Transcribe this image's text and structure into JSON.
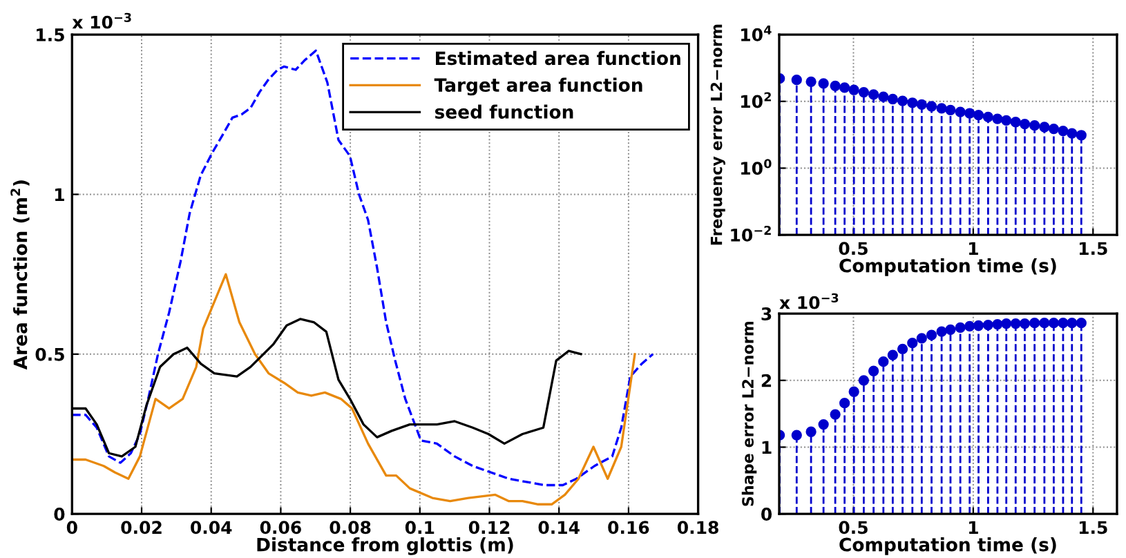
{
  "chart_data": [
    {
      "type": "line",
      "xlabel": "Distance from glottis (m)",
      "ylabel": "Area function (m$^{2}$)",
      "annotations": [
        "x 10$^{−3}$"
      ],
      "xlim": [
        0,
        0.18
      ],
      "ylim": [
        0,
        1.5
      ],
      "xticks": [
        0,
        0.02,
        0.04,
        0.06,
        0.08,
        0.1,
        0.12,
        0.14,
        0.16,
        0.18
      ],
      "yticks": [
        0,
        0.5,
        1,
        1.5
      ],
      "grid": true,
      "legend": "top right",
      "series": [
        {
          "name": "Estimated area function",
          "color": "#0000ff",
          "line_style": "dashed",
          "x": [
            0,
            0.0039,
            0.0071,
            0.0106,
            0.0139,
            0.0169,
            0.0195,
            0.0221,
            0.0247,
            0.0279,
            0.0312,
            0.0338,
            0.037,
            0.0403,
            0.0435,
            0.0461,
            0.0487,
            0.0513,
            0.0539,
            0.0565,
            0.0591,
            0.061,
            0.0643,
            0.0669,
            0.0701,
            0.0734,
            0.0766,
            0.0799,
            0.0825,
            0.0851,
            0.0877,
            0.0903,
            0.0929,
            0.0958,
            0.1003,
            0.1049,
            0.11,
            0.1152,
            0.1204,
            0.1256,
            0.1307,
            0.1359,
            0.1411,
            0.145,
            0.1502,
            0.1553,
            0.1579,
            0.1605,
            0.1638,
            0.167
          ],
          "values": [
            0.31,
            0.31,
            0.27,
            0.18,
            0.16,
            0.19,
            0.25,
            0.37,
            0.5,
            0.63,
            0.79,
            0.94,
            1.06,
            1.13,
            1.19,
            1.24,
            1.25,
            1.27,
            1.32,
            1.36,
            1.39,
            1.4,
            1.39,
            1.42,
            1.45,
            1.35,
            1.17,
            1.12,
            1.0,
            0.92,
            0.77,
            0.6,
            0.48,
            0.36,
            0.23,
            0.22,
            0.18,
            0.15,
            0.13,
            0.11,
            0.1,
            0.09,
            0.09,
            0.11,
            0.15,
            0.18,
            0.27,
            0.43,
            0.47,
            0.5
          ]
        },
        {
          "name": "Target area function",
          "color": "#e8890c",
          "line_style": "solid",
          "x": [
            0,
            0.0039,
            0.0091,
            0.0123,
            0.0162,
            0.0195,
            0.024,
            0.0279,
            0.0318,
            0.0357,
            0.0377,
            0.0442,
            0.0481,
            0.0526,
            0.0565,
            0.061,
            0.0649,
            0.0688,
            0.0727,
            0.0773,
            0.0805,
            0.0851,
            0.0903,
            0.0932,
            0.0971,
            0.1036,
            0.1087,
            0.1139,
            0.1217,
            0.1256,
            0.1295,
            0.134,
            0.1379,
            0.1417,
            0.1456,
            0.1499,
            0.154,
            0.1579,
            0.1618
          ],
          "values": [
            0.17,
            0.17,
            0.15,
            0.13,
            0.11,
            0.18,
            0.36,
            0.33,
            0.36,
            0.46,
            0.58,
            0.75,
            0.6,
            0.5,
            0.44,
            0.41,
            0.38,
            0.37,
            0.38,
            0.36,
            0.33,
            0.22,
            0.12,
            0.12,
            0.08,
            0.05,
            0.04,
            0.05,
            0.06,
            0.04,
            0.04,
            0.03,
            0.03,
            0.06,
            0.11,
            0.21,
            0.11,
            0.21,
            0.5
          ]
        },
        {
          "name": "seed function",
          "color": "#000000",
          "line_style": "solid",
          "x": [
            0,
            0.0039,
            0.0071,
            0.0106,
            0.0143,
            0.0182,
            0.0214,
            0.0253,
            0.0292,
            0.0331,
            0.037,
            0.0409,
            0.0474,
            0.0513,
            0.0578,
            0.0617,
            0.0656,
            0.0695,
            0.0731,
            0.0766,
            0.0799,
            0.0838,
            0.0877,
            0.0919,
            0.0971,
            0.1049,
            0.11,
            0.1152,
            0.1197,
            0.1243,
            0.1295,
            0.1355,
            0.1392,
            0.1428,
            0.1463
          ],
          "values": [
            0.33,
            0.33,
            0.28,
            0.19,
            0.18,
            0.21,
            0.34,
            0.46,
            0.5,
            0.52,
            0.47,
            0.44,
            0.43,
            0.46,
            0.53,
            0.59,
            0.61,
            0.6,
            0.57,
            0.42,
            0.36,
            0.28,
            0.24,
            0.26,
            0.28,
            0.28,
            0.29,
            0.27,
            0.25,
            0.22,
            0.25,
            0.27,
            0.48,
            0.51,
            0.5
          ]
        }
      ]
    },
    {
      "type": "lollipop",
      "xlabel": "Computation time (s)",
      "ylabel": "Frequency error L2−norm",
      "log": "y",
      "xlim": [
        0.19,
        1.6
      ],
      "ylim": [
        0.01,
        10000
      ],
      "xticks": [
        0.5,
        1,
        1.5
      ],
      "yticks": [
        {
          "value": 0.01,
          "label": "10$^{−2}$"
        },
        {
          "value": 1,
          "label": "10$^{0}$"
        },
        {
          "value": 100,
          "label": "10$^{2}$"
        },
        {
          "value": 10000,
          "label": "10$^{4}$"
        }
      ],
      "grid": true,
      "marker": "circle",
      "line_style": "dashed",
      "series": [
        {
          "color": "#0000cc",
          "x": [
            0.192,
            0.263,
            0.323,
            0.375,
            0.424,
            0.463,
            0.502,
            0.543,
            0.584,
            0.625,
            0.664,
            0.705,
            0.746,
            0.785,
            0.826,
            0.868,
            0.905,
            0.946,
            0.985,
            1.022,
            1.062,
            1.101,
            1.138,
            1.177,
            1.215,
            1.256,
            1.297,
            1.336,
            1.375,
            1.412,
            1.451
          ],
          "values": [
            484,
            441,
            388,
            342,
            292,
            258,
            220,
            188,
            160,
            137,
            117,
            103,
            91,
            80,
            71,
            62,
            55,
            48,
            44,
            39,
            34,
            30,
            27,
            24,
            21,
            19,
            17,
            15,
            13,
            11,
            9.7
          ]
        }
      ]
    },
    {
      "type": "lollipop",
      "xlabel": "Computation time (s)",
      "ylabel": "Shape error L2−norm",
      "annotations": [
        "x 10$^{−3}$"
      ],
      "xlim": [
        0.19,
        1.6
      ],
      "ylim": [
        0,
        3
      ],
      "xticks": [
        0.5,
        1,
        1.5
      ],
      "yticks": [
        0,
        1,
        2,
        3
      ],
      "grid": true,
      "marker": "circle",
      "line_style": "dashed",
      "series": [
        {
          "color": "#0000cc",
          "x": [
            0.192,
            0.263,
            0.323,
            0.375,
            0.424,
            0.463,
            0.502,
            0.543,
            0.584,
            0.625,
            0.664,
            0.705,
            0.746,
            0.785,
            0.826,
            0.868,
            0.905,
            0.946,
            0.985,
            1.022,
            1.062,
            1.101,
            1.138,
            1.177,
            1.215,
            1.256,
            1.297,
            1.336,
            1.375,
            1.412,
            1.451
          ],
          "values": [
            1.18,
            1.18,
            1.23,
            1.34,
            1.49,
            1.66,
            1.83,
            2.0,
            2.14,
            2.28,
            2.38,
            2.47,
            2.56,
            2.63,
            2.68,
            2.73,
            2.76,
            2.79,
            2.81,
            2.82,
            2.83,
            2.84,
            2.85,
            2.85,
            2.85,
            2.86,
            2.86,
            2.86,
            2.86,
            2.86,
            2.86
          ]
        }
      ]
    }
  ]
}
